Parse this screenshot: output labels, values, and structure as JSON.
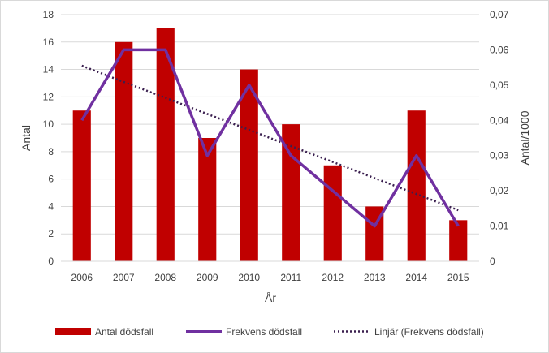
{
  "chart_data": {
    "type": "bar",
    "categories": [
      "2006",
      "2007",
      "2008",
      "2009",
      "2010",
      "2011",
      "2012",
      "2013",
      "2014",
      "2015"
    ],
    "series": [
      {
        "name": "Antal dödsfall",
        "type": "bar",
        "axis": "left",
        "color": "#C00000",
        "values": [
          11,
          16,
          17,
          9,
          14,
          10,
          7,
          4,
          11,
          3
        ]
      },
      {
        "name": "Frekvens dödsfall",
        "type": "line",
        "axis": "right",
        "color": "#7030A0",
        "values": [
          0.04,
          0.06,
          0.06,
          0.03,
          0.05,
          0.03,
          0.02,
          0.01,
          0.03,
          0.01
        ]
      },
      {
        "name": "Linjär (Frekvens dödsfall)",
        "type": "trendline",
        "axis": "right",
        "color": "#3A1F4F",
        "style": "dotted",
        "values": [
          0.0555,
          0.0509,
          0.0464,
          0.0418,
          0.0373,
          0.0327,
          0.0282,
          0.0236,
          0.0191,
          0.0145
        ]
      }
    ],
    "xlabel": "År",
    "ylabel": "Antal",
    "y2label": "Antal/1000",
    "ylim": [
      0,
      18
    ],
    "y2lim": [
      0,
      0.07
    ],
    "yticks": [
      "0",
      "2",
      "4",
      "6",
      "8",
      "10",
      "12",
      "14",
      "16",
      "18"
    ],
    "y2ticks": [
      "0",
      "0,01",
      "0,02",
      "0,03",
      "0,04",
      "0,05",
      "0,06",
      "0,07"
    ],
    "grid": true,
    "legend_position": "bottom"
  }
}
